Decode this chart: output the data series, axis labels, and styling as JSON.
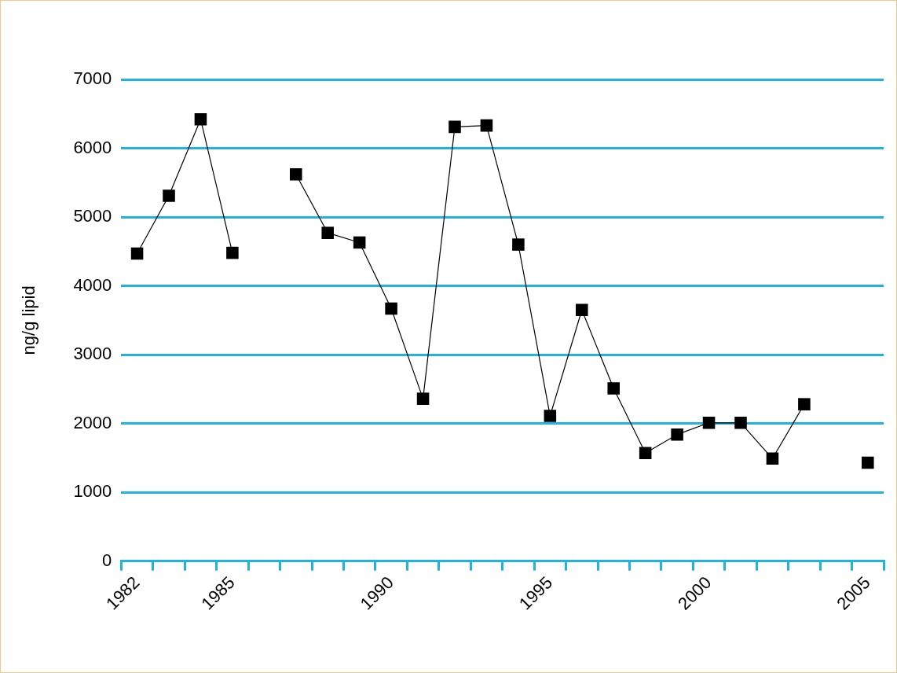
{
  "chart_data": {
    "type": "line",
    "ylabel": "ng/g lipid",
    "categories": [
      "1982",
      null,
      null,
      "1985",
      null,
      null,
      null,
      null,
      "1990",
      null,
      null,
      null,
      null,
      "1995",
      null,
      null,
      null,
      null,
      "2000",
      null,
      null,
      null,
      null,
      "2005"
    ],
    "series": [
      {
        "color": "#000000",
        "values": [
          4470,
          5310,
          6420,
          4480,
          null,
          5620,
          4770,
          4630,
          3670,
          2360,
          6310,
          6330,
          4600,
          2110,
          3650,
          2510,
          1570,
          1840,
          2010,
          2010,
          1490,
          2280,
          null,
          1430
        ]
      }
    ],
    "ylim": [
      0,
      7000
    ],
    "yticks": [
      0,
      1000,
      2000,
      3000,
      4000,
      5000,
      6000,
      7000
    ],
    "grid": "y",
    "marker": "square",
    "line_style": "solid"
  }
}
